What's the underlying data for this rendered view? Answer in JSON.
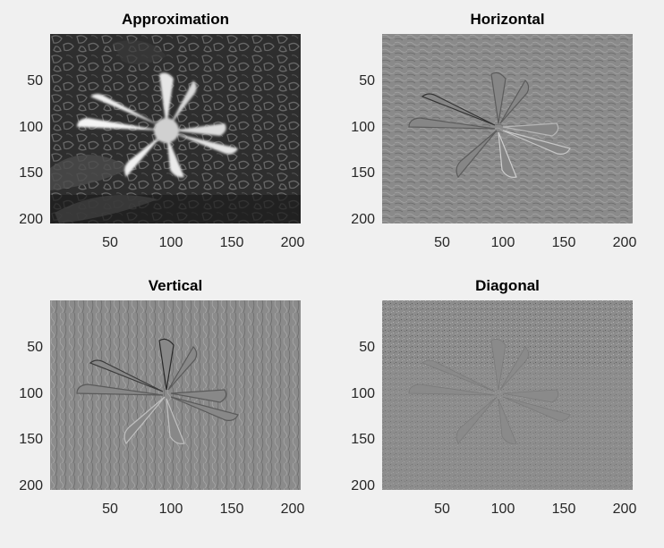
{
  "figure": {
    "background": "#f0f0f0"
  },
  "panels": [
    {
      "title": "Approximation",
      "kind": "approximation",
      "xticks": [
        "50",
        "100",
        "150",
        "200"
      ],
      "yticks": [
        "50",
        "100",
        "150",
        "200"
      ],
      "xlim": [
        1,
        207
      ],
      "ylim": [
        1,
        207
      ]
    },
    {
      "title": "Horizontal",
      "kind": "horizontal",
      "xticks": [
        "50",
        "100",
        "150",
        "200"
      ],
      "yticks": [
        "50",
        "100",
        "150",
        "200"
      ],
      "xlim": [
        1,
        207
      ],
      "ylim": [
        1,
        207
      ]
    },
    {
      "title": "Vertical",
      "kind": "vertical",
      "xticks": [
        "50",
        "100",
        "150",
        "200"
      ],
      "yticks": [
        "50",
        "100",
        "150",
        "200"
      ],
      "xlim": [
        1,
        207
      ],
      "ylim": [
        1,
        207
      ]
    },
    {
      "title": "Diagonal",
      "kind": "diagonal",
      "xticks": [
        "50",
        "100",
        "150",
        "200"
      ],
      "yticks": [
        "50",
        "100",
        "150",
        "200"
      ],
      "xlim": [
        1,
        207
      ],
      "ylim": [
        1,
        207
      ]
    }
  ]
}
